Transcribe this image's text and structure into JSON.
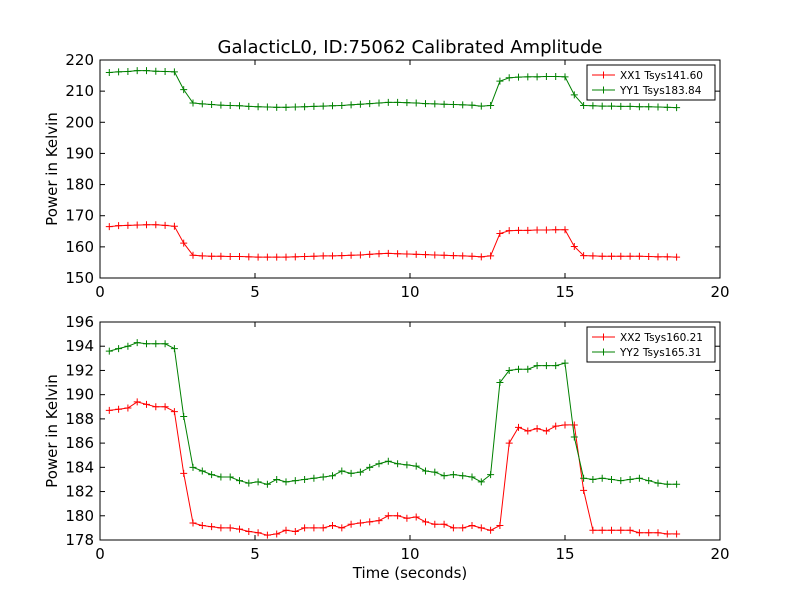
{
  "title": "GalacticL0, ID:75062 Calibrated Amplitude",
  "chart_data": [
    {
      "type": "line",
      "title": "GalacticL0, ID:75062 Calibrated Amplitude",
      "xlabel": "",
      "ylabel": "Power in Kelvin",
      "xlim": [
        0,
        20
      ],
      "ylim": [
        150,
        220
      ],
      "xticks": [
        0,
        5,
        10,
        15,
        20
      ],
      "yticks": [
        150,
        160,
        170,
        180,
        190,
        200,
        210,
        220
      ],
      "grid": false,
      "legend_position": "top-right",
      "series": [
        {
          "name": "XX1 Tsys141.60",
          "color": "#ff0000",
          "x": [
            0.3,
            0.6,
            0.9,
            1.2,
            1.5,
            1.8,
            2.1,
            2.4,
            2.7,
            3.0,
            3.3,
            3.6,
            3.9,
            4.2,
            4.5,
            4.8,
            5.1,
            5.4,
            5.7,
            6.0,
            6.3,
            6.6,
            6.9,
            7.2,
            7.5,
            7.8,
            8.1,
            8.4,
            8.7,
            9.0,
            9.3,
            9.6,
            9.9,
            10.2,
            10.5,
            10.8,
            11.1,
            11.4,
            11.7,
            12.0,
            12.3,
            12.6,
            12.9,
            13.2,
            13.5,
            13.8,
            14.1,
            14.4,
            14.7,
            15.0,
            15.3,
            15.6,
            15.9,
            16.2,
            16.5,
            16.8,
            17.1,
            17.4,
            17.7,
            18.0,
            18.3,
            18.6
          ],
          "y": [
            166.5,
            166.8,
            166.9,
            167.0,
            167.1,
            167.1,
            166.9,
            166.6,
            161.2,
            157.3,
            157.1,
            157.0,
            157.0,
            156.9,
            156.9,
            156.8,
            156.7,
            156.7,
            156.7,
            156.7,
            156.8,
            156.9,
            157.0,
            157.1,
            157.1,
            157.2,
            157.3,
            157.4,
            157.6,
            157.8,
            157.9,
            157.8,
            157.7,
            157.6,
            157.5,
            157.4,
            157.3,
            157.2,
            157.1,
            157.0,
            156.8,
            157.1,
            164.3,
            165.2,
            165.3,
            165.3,
            165.4,
            165.4,
            165.5,
            165.5,
            160.1,
            157.2,
            157.1,
            157.0,
            157.0,
            157.0,
            157.0,
            157.0,
            156.9,
            156.8,
            156.8,
            156.7
          ]
        },
        {
          "name": "YY1 Tsys183.84",
          "color": "#008000",
          "x": [
            0.3,
            0.6,
            0.9,
            1.2,
            1.5,
            1.8,
            2.1,
            2.4,
            2.7,
            3.0,
            3.3,
            3.6,
            3.9,
            4.2,
            4.5,
            4.8,
            5.1,
            5.4,
            5.7,
            6.0,
            6.3,
            6.6,
            6.9,
            7.2,
            7.5,
            7.8,
            8.1,
            8.4,
            8.7,
            9.0,
            9.3,
            9.6,
            9.9,
            10.2,
            10.5,
            10.8,
            11.1,
            11.4,
            11.7,
            12.0,
            12.3,
            12.6,
            12.9,
            13.2,
            13.5,
            13.8,
            14.1,
            14.4,
            14.7,
            15.0,
            15.3,
            15.6,
            15.9,
            16.2,
            16.5,
            16.8,
            17.1,
            17.4,
            17.7,
            18.0,
            18.3,
            18.6
          ],
          "y": [
            216.0,
            216.2,
            216.3,
            216.6,
            216.6,
            216.4,
            216.3,
            216.2,
            210.5,
            206.2,
            205.9,
            205.7,
            205.5,
            205.4,
            205.3,
            205.1,
            205.0,
            204.9,
            204.8,
            204.8,
            204.9,
            205.0,
            205.1,
            205.2,
            205.3,
            205.4,
            205.6,
            205.8,
            206.0,
            206.2,
            206.4,
            206.4,
            206.3,
            206.2,
            206.0,
            205.9,
            205.8,
            205.7,
            205.6,
            205.5,
            205.2,
            205.4,
            213.2,
            214.3,
            214.5,
            214.6,
            214.6,
            214.7,
            214.7,
            214.6,
            208.8,
            205.4,
            205.3,
            205.2,
            205.2,
            205.1,
            205.1,
            205.0,
            205.0,
            204.9,
            204.8,
            204.7
          ]
        }
      ]
    },
    {
      "type": "line",
      "title": "",
      "xlabel": "Time (seconds)",
      "ylabel": "Power in Kelvin",
      "xlim": [
        0,
        20
      ],
      "ylim": [
        178,
        196
      ],
      "xticks": [
        0,
        5,
        10,
        15,
        20
      ],
      "yticks": [
        178,
        180,
        182,
        184,
        186,
        188,
        190,
        192,
        194,
        196
      ],
      "grid": false,
      "legend_position": "top-right",
      "series": [
        {
          "name": "XX2 Tsys160.21",
          "color": "#ff0000",
          "x": [
            0.3,
            0.6,
            0.9,
            1.2,
            1.5,
            1.8,
            2.1,
            2.4,
            2.7,
            3.0,
            3.3,
            3.6,
            3.9,
            4.2,
            4.5,
            4.8,
            5.1,
            5.4,
            5.7,
            6.0,
            6.3,
            6.6,
            6.9,
            7.2,
            7.5,
            7.8,
            8.1,
            8.4,
            8.7,
            9.0,
            9.3,
            9.6,
            9.9,
            10.2,
            10.5,
            10.8,
            11.1,
            11.4,
            11.7,
            12.0,
            12.3,
            12.6,
            12.9,
            13.2,
            13.5,
            13.8,
            14.1,
            14.4,
            14.7,
            15.0,
            15.3,
            15.6,
            15.9,
            16.2,
            16.5,
            16.8,
            17.1,
            17.4,
            17.7,
            18.0,
            18.3,
            18.6
          ],
          "y": [
            188.7,
            188.8,
            188.9,
            189.4,
            189.2,
            189.0,
            189.0,
            188.6,
            183.5,
            179.4,
            179.2,
            179.1,
            179.0,
            179.0,
            178.9,
            178.7,
            178.6,
            178.4,
            178.5,
            178.8,
            178.7,
            179.0,
            179.0,
            179.0,
            179.2,
            179.0,
            179.3,
            179.4,
            179.5,
            179.6,
            180.0,
            180.0,
            179.8,
            179.9,
            179.5,
            179.3,
            179.3,
            179.0,
            179.0,
            179.2,
            179.0,
            178.8,
            179.2,
            186.0,
            187.3,
            187.0,
            187.2,
            187.0,
            187.4,
            187.5,
            187.5,
            182.1,
            178.8,
            178.8,
            178.8,
            178.8,
            178.8,
            178.6,
            178.6,
            178.6,
            178.5,
            178.5
          ]
        },
        {
          "name": "YY2 Tsys165.31",
          "color": "#008000",
          "x": [
            0.3,
            0.6,
            0.9,
            1.2,
            1.5,
            1.8,
            2.1,
            2.4,
            2.7,
            3.0,
            3.3,
            3.6,
            3.9,
            4.2,
            4.5,
            4.8,
            5.1,
            5.4,
            5.7,
            6.0,
            6.3,
            6.6,
            6.9,
            7.2,
            7.5,
            7.8,
            8.1,
            8.4,
            8.7,
            9.0,
            9.3,
            9.6,
            9.9,
            10.2,
            10.5,
            10.8,
            11.1,
            11.4,
            11.7,
            12.0,
            12.3,
            12.6,
            12.9,
            13.2,
            13.5,
            13.8,
            14.1,
            14.4,
            14.7,
            15.0,
            15.3,
            15.6,
            15.9,
            16.2,
            16.5,
            16.8,
            17.1,
            17.4,
            17.7,
            18.0,
            18.3,
            18.6
          ],
          "y": [
            193.6,
            193.8,
            194.0,
            194.3,
            194.2,
            194.2,
            194.2,
            193.8,
            188.2,
            184.0,
            183.7,
            183.4,
            183.2,
            183.2,
            182.9,
            182.7,
            182.8,
            182.6,
            183.0,
            182.8,
            182.9,
            183.0,
            183.1,
            183.2,
            183.3,
            183.7,
            183.5,
            183.6,
            184.0,
            184.3,
            184.5,
            184.3,
            184.2,
            184.1,
            183.7,
            183.6,
            183.3,
            183.4,
            183.3,
            183.2,
            182.8,
            183.4,
            191.0,
            192.0,
            192.1,
            192.1,
            192.4,
            192.4,
            192.4,
            192.6,
            186.5,
            183.1,
            183.0,
            183.1,
            183.0,
            182.9,
            183.0,
            183.1,
            182.9,
            182.7,
            182.6,
            182.6
          ]
        }
      ]
    }
  ]
}
